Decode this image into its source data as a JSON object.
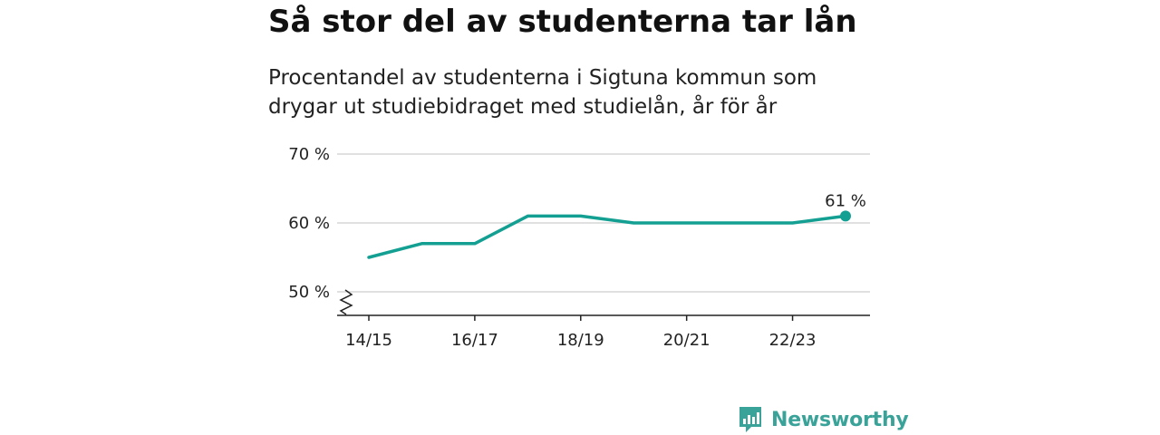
{
  "header": {
    "title": "Så stor del av studenterna tar lån",
    "subtitle_line1": "Procentandel av studenterna i Sigtuna kommun som",
    "subtitle_line2": "drygar ut studiebidraget med studielån, år för år"
  },
  "brand": {
    "name": "Newsworthy",
    "color": "#3aa399",
    "icon": "newsworthy-logo-icon"
  },
  "chart_data": {
    "type": "line",
    "title": "Så stor del av studenterna tar lån",
    "subtitle": "Procentandel av studenterna i Sigtuna kommun som drygar ut studiebidraget med studielån, år för år",
    "x": [
      "14/15",
      "15/16",
      "16/17",
      "17/18",
      "18/19",
      "19/20",
      "20/21",
      "21/22",
      "22/23",
      "23/24"
    ],
    "series": [
      {
        "values": [
          55,
          57,
          57,
          61,
          61,
          60,
          60,
          60,
          60,
          61
        ],
        "color": "#13a092"
      }
    ],
    "x_tick_labels": [
      "14/15",
      "16/17",
      "18/19",
      "20/21",
      "22/23"
    ],
    "y_ticks": [
      50,
      60,
      70
    ],
    "y_tick_labels": [
      "50 %",
      "60 %",
      "70 %"
    ],
    "ylim": [
      50,
      70
    ],
    "y_axis_break": true,
    "grid": true,
    "end_label": "61 %",
    "xlabel": "",
    "ylabel": ""
  }
}
